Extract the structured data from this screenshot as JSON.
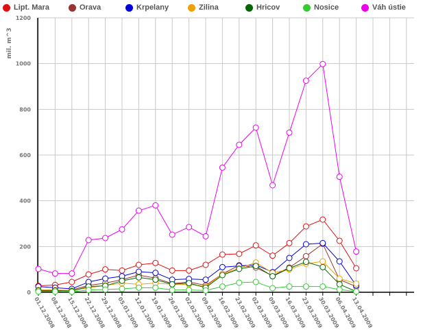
{
  "chart_data": {
    "type": "line",
    "ylabel": "mil. m^3",
    "ylim": [
      0,
      1200
    ],
    "yticks": [
      0,
      200,
      400,
      600,
      800,
      1000,
      1200
    ],
    "grid": true,
    "legend_position": "top",
    "x_tick_labels": [
      "01.12.2008",
      "08.12.2008",
      "15.12.2008",
      "22.12.2008",
      "29.12.2008",
      "05.01.2009",
      "12.01.2009",
      "19.01.2009",
      "26.01.2009",
      "02.02.2009",
      "09.02.2009",
      "16.02.2009",
      "23.02.2009",
      "02.03.2009",
      "09.03.2009",
      "16.03.2009",
      "23.03.2009",
      "30.03.2009",
      "06.04.2009",
      "13.04.2009"
    ],
    "series": [
      {
        "name": "Lipt. Mara",
        "color": "#e01010",
        "values": [
          28,
          32,
          45,
          78,
          100,
          95,
          120,
          128,
          95,
          95,
          120,
          165,
          168,
          205,
          160,
          215,
          288,
          318,
          225,
          105
        ]
      },
      {
        "name": "Orava",
        "color": "#993333",
        "values": [
          5,
          5,
          10,
          30,
          40,
          55,
          75,
          62,
          38,
          45,
          30,
          80,
          118,
          108,
          72,
          108,
          158,
          212,
          55,
          25
        ]
      },
      {
        "name": "Krpelany",
        "color": "#0000dd",
        "values": [
          25,
          20,
          15,
          45,
          60,
          70,
          90,
          85,
          55,
          58,
          55,
          110,
          115,
          120,
          88,
          150,
          210,
          215,
          135,
          30
        ]
      },
      {
        "name": "Zilina",
        "color": "#f0a000",
        "values": [
          10,
          10,
          8,
          20,
          30,
          40,
          35,
          40,
          35,
          35,
          25,
          80,
          105,
          130,
          85,
          100,
          125,
          135,
          60,
          38
        ]
      },
      {
        "name": "Hricov",
        "color": "#006600",
        "values": [
          8,
          8,
          5,
          25,
          28,
          50,
          65,
          55,
          35,
          40,
          20,
          75,
          102,
          115,
          70,
          105,
          133,
          110,
          35,
          3
        ]
      },
      {
        "name": "Nosice",
        "color": "#33cc33",
        "values": [
          3,
          3,
          2,
          10,
          12,
          15,
          20,
          20,
          10,
          10,
          8,
          25,
          42,
          45,
          18,
          25,
          25,
          25,
          12,
          3
        ]
      },
      {
        "name": "Váh ústie",
        "color": "#ee00ee",
        "values": [
          102,
          82,
          82,
          228,
          237,
          275,
          357,
          380,
          252,
          285,
          245,
          545,
          645,
          720,
          468,
          698,
          925,
          998,
          505,
          178
        ]
      }
    ]
  }
}
